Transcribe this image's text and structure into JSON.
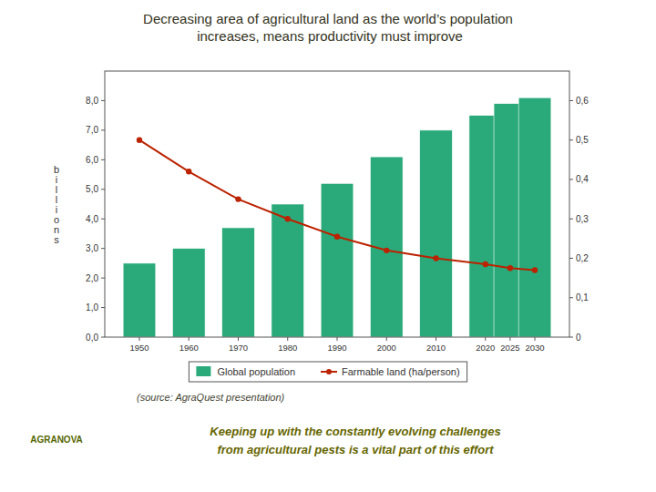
{
  "chart_data": {
    "type": "bar",
    "title": "Decreasing area of agricultural land as the world’s population\n increases, means productivity must improve",
    "y_label": "b\ni\nl\nl\ni\no\nn\ns",
    "x": [
      1950,
      1960,
      1970,
      1980,
      1990,
      2000,
      2010,
      2020,
      2025,
      2030
    ],
    "xlim": [
      1943,
      2037
    ],
    "xticks": [
      1950,
      1960,
      1970,
      1980,
      1990,
      2000,
      2010,
      2020,
      2025,
      2030
    ],
    "ylim": [
      0,
      9.0
    ],
    "yticks": [
      {
        "value": 0.0,
        "label": "0,0"
      },
      {
        "value": 1.0,
        "label": "1,0"
      },
      {
        "value": 2.0,
        "label": "2,0"
      },
      {
        "value": 3.0,
        "label": "3,0"
      },
      {
        "value": 4.0,
        "label": "4,0"
      },
      {
        "value": 5.0,
        "label": "5,0"
      },
      {
        "value": 6.0,
        "label": "6,0"
      },
      {
        "value": 7.0,
        "label": "7,0"
      },
      {
        "value": 8.0,
        "label": "8,0"
      }
    ],
    "y2lim": [
      0,
      0.675
    ],
    "y2ticks": [
      0,
      {
        "value": 0.1,
        "label": "0,1"
      },
      {
        "value": 0.2,
        "label": "0,2"
      },
      {
        "value": 0.3,
        "label": "0,3"
      },
      {
        "value": 0.4,
        "label": "0,4"
      },
      {
        "value": 0.5,
        "label": "0,5"
      },
      {
        "value": 0.6,
        "label": "0,6"
      }
    ],
    "series": [
      {
        "name": "Global population",
        "type": "bar",
        "color": "#2aaa7a",
        "values": [
          2.5,
          3.0,
          3.7,
          4.5,
          5.2,
          6.1,
          7.0,
          7.5,
          7.9,
          8.1
        ]
      },
      {
        "name": "Farmable land (ha/person)",
        "type": "line",
        "axis": "y2",
        "color": "#bb2200",
        "marker": "circle",
        "values": [
          0.5,
          0.42,
          0.35,
          0.3,
          0.255,
          0.22,
          0.2,
          0.185,
          0.175,
          0.17
        ]
      }
    ],
    "annotations": [
      "(source: AgraQuest presentation)",
      "Keeping up with the constantly evolving challenges\nfrom agricultural pests is a vital part of this effort",
      "AGRANOVA"
    ],
    "legend": "bottom",
    "grid": false
  }
}
